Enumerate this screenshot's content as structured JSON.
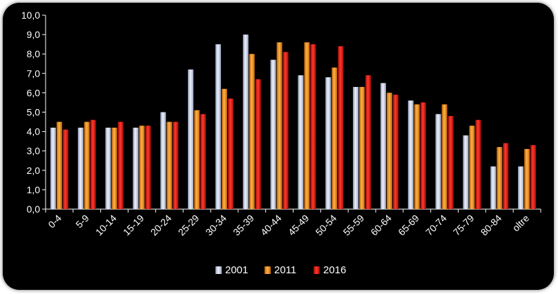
{
  "chart_data": {
    "type": "bar",
    "categories": [
      "0-4",
      "5-9",
      "10-14",
      "15-19",
      "20-24",
      "25-29",
      "30-34",
      "35-39",
      "40-44",
      "45-49",
      "50-54",
      "55-59",
      "60-64",
      "65-69",
      "70-74",
      "75-79",
      "80-84",
      "oltre"
    ],
    "series": [
      {
        "name": "2001",
        "values": [
          4.2,
          4.2,
          4.2,
          4.2,
          5.0,
          7.2,
          8.5,
          9.0,
          7.7,
          6.9,
          6.8,
          6.3,
          6.5,
          5.6,
          4.9,
          3.8,
          2.2,
          2.2
        ]
      },
      {
        "name": "2011",
        "values": [
          4.5,
          4.5,
          4.2,
          4.3,
          4.5,
          5.1,
          6.2,
          8.0,
          8.6,
          8.6,
          7.3,
          6.3,
          6.0,
          5.4,
          5.4,
          4.3,
          3.2,
          3.1
        ]
      },
      {
        "name": "2016",
        "values": [
          4.1,
          4.6,
          4.5,
          4.3,
          4.5,
          4.9,
          5.7,
          6.7,
          8.1,
          8.5,
          8.4,
          6.9,
          5.9,
          5.5,
          4.8,
          4.6,
          3.4,
          3.3
        ]
      }
    ],
    "ylim": [
      0,
      10
    ],
    "yticks": [
      "0,0",
      "1,0",
      "2,0",
      "3,0",
      "4,0",
      "5,0",
      "6,0",
      "7,0",
      "8,0",
      "9,0",
      "10,0"
    ],
    "legend_position": "bottom",
    "grid": false,
    "colors": {
      "background": "#000000",
      "series": [
        "#c9d3e8",
        "#f08c1c",
        "#e0120d"
      ],
      "axis": "#ffffff"
    }
  }
}
